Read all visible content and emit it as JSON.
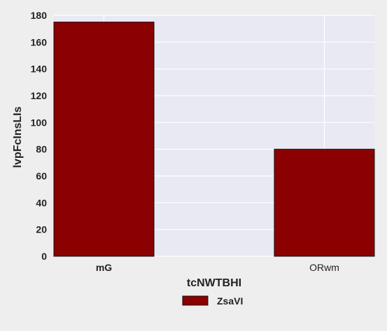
{
  "chart_data": {
    "type": "bar",
    "categories": [
      "mG",
      "ORwm"
    ],
    "series": [
      {
        "name": "ZsaVI",
        "values": [
          175,
          80
        ],
        "color": "#8b0000"
      }
    ],
    "xlabel": "tcNWTBHI",
    "ylabel": "lvpFcInsLIs",
    "ylim": [
      0,
      180
    ],
    "yticks": [
      0,
      20,
      40,
      60,
      80,
      100,
      120,
      140,
      160,
      180
    ],
    "grid": true,
    "legend_position": "bottom-center",
    "plot_background": "#e8e9f2",
    "grid_color": "#ffffff"
  }
}
